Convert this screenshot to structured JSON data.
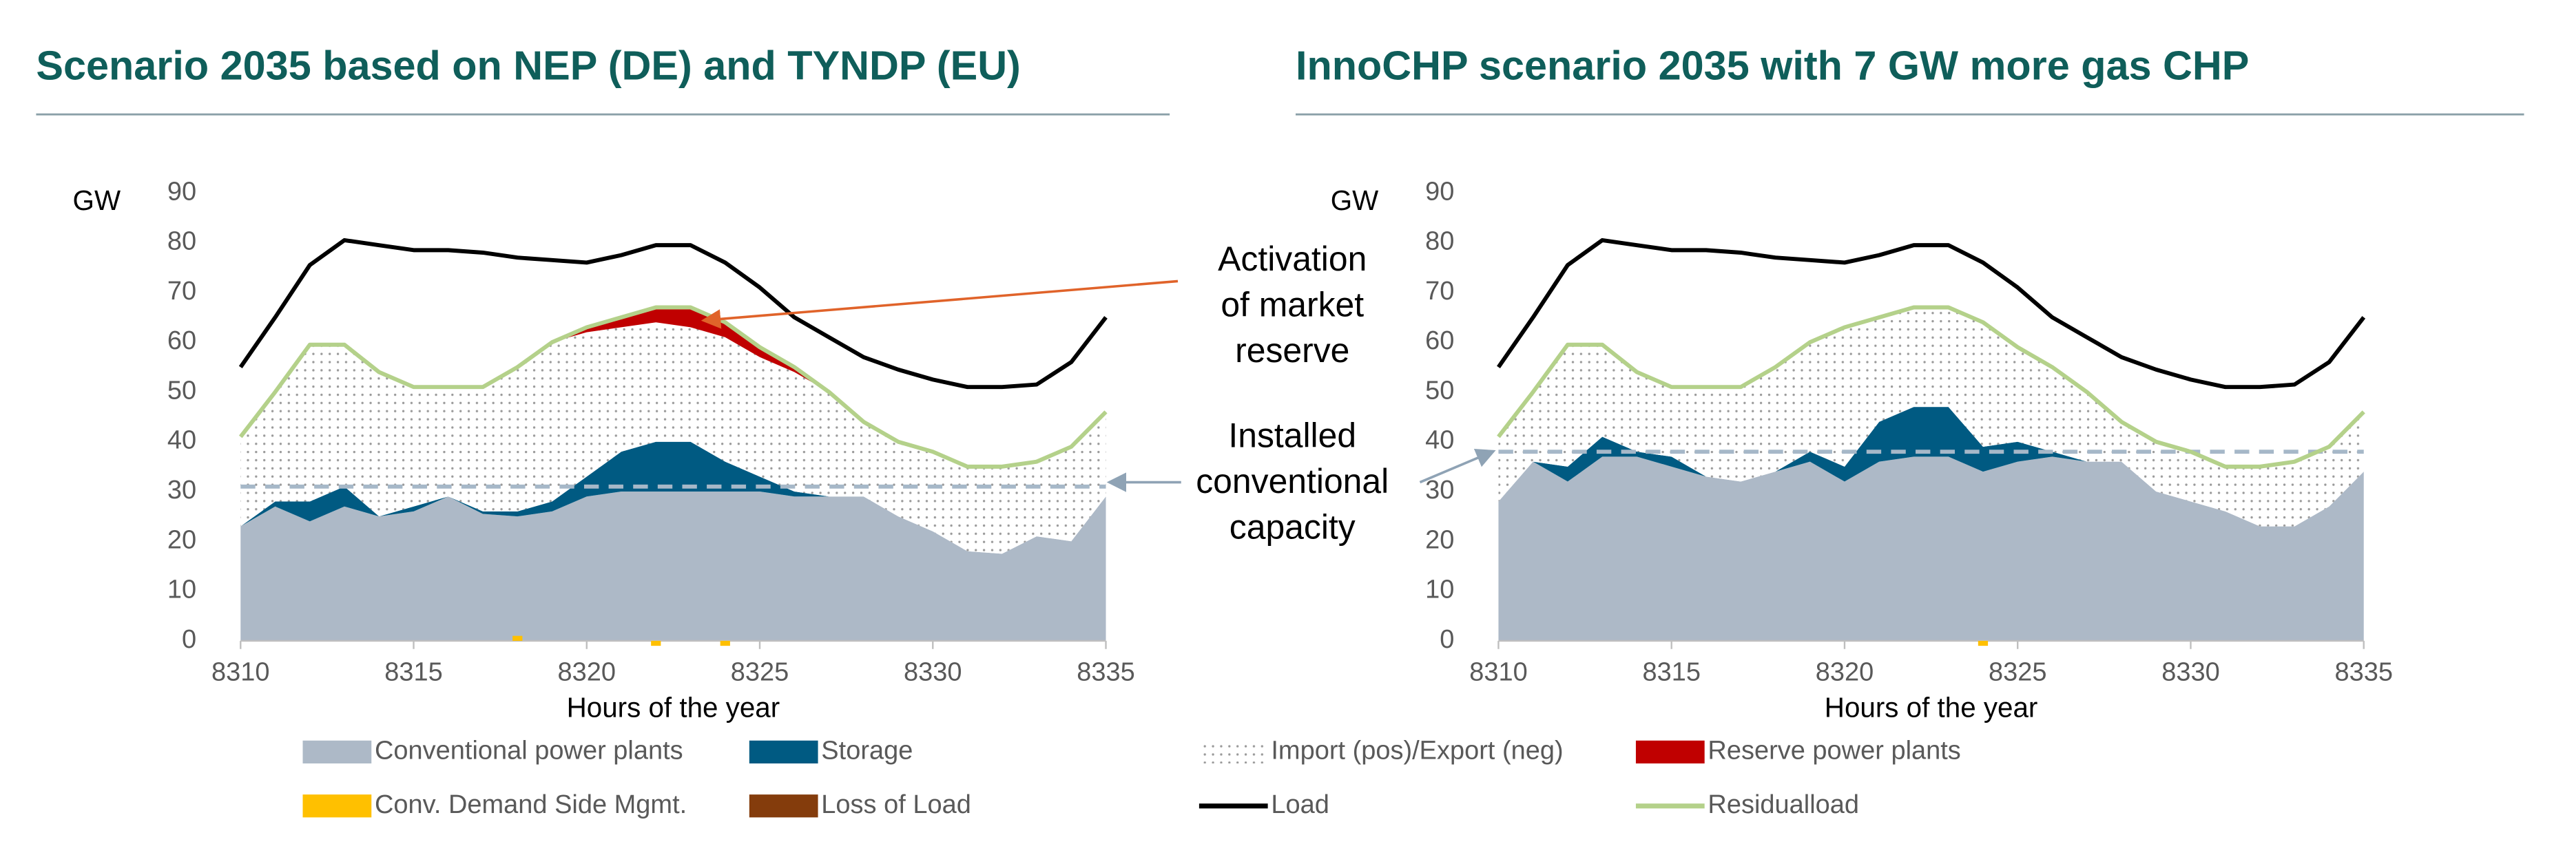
{
  "chart_data": [
    {
      "type": "area",
      "title": "Scenario 2035 based on NEP (DE) and TYNDP (EU)",
      "ylabel": "GW",
      "xlabel": "Hours of the year",
      "x": [
        8310,
        8311,
        8312,
        8313,
        8314,
        8315,
        8316,
        8317,
        8318,
        8319,
        8320,
        8321,
        8322,
        8323,
        8324,
        8325,
        8326,
        8327,
        8328,
        8329,
        8330,
        8331,
        8332,
        8333,
        8334,
        8335
      ],
      "xlim": [
        8310,
        8335
      ],
      "xticks": [
        8310,
        8315,
        8320,
        8325,
        8330,
        8335
      ],
      "ylim": [
        0,
        90
      ],
      "yticks": [
        0,
        10,
        20,
        30,
        40,
        50,
        60,
        70,
        80,
        90
      ],
      "capacity": 31,
      "capacity_color": "#a6b8c8",
      "series": [
        {
          "name": "Conventional power plants",
          "kind": "area",
          "color": "#adb9c7",
          "values": [
            23,
            27,
            24,
            27,
            25,
            26,
            29,
            25.5,
            25,
            26,
            29,
            30,
            30,
            30,
            30,
            30,
            29,
            29,
            29,
            25,
            22,
            18,
            17.5,
            21,
            20,
            29
          ]
        },
        {
          "name": "Storage",
          "kind": "area",
          "color": "#005a82",
          "values": [
            0,
            1,
            4,
            4,
            0,
            1,
            0,
            0.5,
            1,
            2,
            4,
            8,
            10,
            10,
            6,
            3,
            1,
            0,
            0,
            0,
            0,
            0,
            0,
            0,
            0,
            0
          ]
        },
        {
          "name": "Import (pos)/Export (neg)",
          "kind": "area",
          "color": "#d0d0d0",
          "pattern": "dots",
          "values": [
            18,
            22,
            31.5,
            28.5,
            29,
            24,
            22,
            25,
            29,
            32,
            29,
            25,
            24,
            23,
            25,
            24,
            24,
            21,
            15,
            15,
            16,
            17,
            17.5,
            15,
            19,
            17
          ]
        },
        {
          "name": "Reserve power plants",
          "kind": "area",
          "color": "#c00000",
          "values": [
            0,
            0,
            0,
            0,
            0,
            0,
            0,
            0,
            0,
            0,
            1,
            2,
            3,
            4,
            3,
            2,
            1,
            0,
            0,
            0,
            0,
            0,
            0,
            0,
            0,
            0
          ]
        },
        {
          "name": "Conv. Demand Side Mgmt.",
          "kind": "bar",
          "color": "#ffc000",
          "values": [
            0,
            0,
            0,
            0,
            0,
            0,
            0,
            0,
            1,
            0,
            0,
            0,
            -1,
            0,
            -1,
            0,
            0,
            0,
            0,
            0,
            0,
            0,
            0,
            0,
            0,
            0
          ]
        },
        {
          "name": "Loss of Load",
          "kind": "area",
          "color": "#843c0c",
          "values": [
            0,
            0,
            0,
            0,
            0,
            0,
            0,
            0,
            0,
            0,
            0,
            0,
            0,
            0,
            0,
            0,
            0,
            0,
            0,
            0,
            0,
            0,
            0,
            0,
            0,
            0
          ]
        },
        {
          "name": "Load",
          "kind": "line",
          "color": "#000000",
          "values": [
            55,
            65,
            75.5,
            80.5,
            79.5,
            78.5,
            78.5,
            78,
            77,
            76.5,
            76,
            77.5,
            79.5,
            79.5,
            76,
            71,
            65,
            61,
            57,
            54.5,
            52.5,
            51,
            51,
            51.5,
            56,
            65
          ]
        },
        {
          "name": "Residualload",
          "kind": "line",
          "color": "#b4d18a",
          "values": [
            41,
            50,
            59.5,
            59.5,
            54,
            51,
            51,
            51,
            55,
            60,
            63,
            65,
            67,
            67,
            64,
            59,
            55,
            50,
            44,
            40,
            38,
            35,
            35,
            36,
            39,
            46
          ]
        }
      ]
    },
    {
      "type": "area",
      "title": "InnoCHP scenario 2035 with 7 GW more gas CHP",
      "ylabel": "GW",
      "xlabel": "Hours of the year",
      "x": [
        8310,
        8311,
        8312,
        8313,
        8314,
        8315,
        8316,
        8317,
        8318,
        8319,
        8320,
        8321,
        8322,
        8323,
        8324,
        8325,
        8326,
        8327,
        8328,
        8329,
        8330,
        8331,
        8332,
        8333,
        8334,
        8335
      ],
      "xlim": [
        8310,
        8335
      ],
      "xticks": [
        8310,
        8315,
        8320,
        8325,
        8330,
        8335
      ],
      "ylim": [
        0,
        90
      ],
      "yticks": [
        0,
        10,
        20,
        30,
        40,
        50,
        60,
        70,
        80,
        90
      ],
      "capacity": 38,
      "capacity_color": "#a6b8c8",
      "series": [
        {
          "name": "Conventional power plants",
          "kind": "area",
          "color": "#adb9c7",
          "values": [
            28,
            36,
            32,
            37,
            37,
            35,
            33,
            32,
            34,
            36,
            32,
            36,
            37,
            37,
            34,
            36,
            37,
            36,
            36,
            30,
            28,
            26,
            23,
            23,
            27,
            34
          ]
        },
        {
          "name": "Storage",
          "kind": "area",
          "color": "#005a82",
          "values": [
            0,
            0,
            3,
            4,
            1,
            2,
            0,
            0,
            0,
            2,
            3,
            8,
            10,
            10,
            5,
            4,
            1,
            0,
            0,
            0,
            0,
            0,
            0,
            0,
            0,
            0
          ]
        },
        {
          "name": "Import (pos)/Export (neg)",
          "kind": "area",
          "color": "#d0d0d0",
          "pattern": "dots",
          "values": [
            13,
            14,
            24.5,
            18.5,
            16,
            14,
            18,
            19,
            21,
            22,
            28,
            21,
            20,
            20,
            25,
            19,
            17,
            14,
            8,
            10,
            10,
            9,
            12,
            13,
            12,
            12
          ]
        },
        {
          "name": "Reserve power plants",
          "kind": "area",
          "color": "#c00000",
          "values": [
            0,
            0,
            0,
            0,
            0,
            0,
            0,
            0,
            0,
            0,
            0,
            0,
            0,
            0,
            0,
            0,
            0,
            0,
            0,
            0,
            0,
            0,
            0,
            0,
            0,
            0
          ]
        },
        {
          "name": "Conv. Demand Side Mgmt.",
          "kind": "bar",
          "color": "#ffc000",
          "values": [
            0,
            0,
            0,
            0,
            0,
            0,
            0,
            0,
            0,
            0,
            0,
            0,
            0,
            0,
            -1,
            0,
            0,
            0,
            0,
            0,
            0,
            0,
            0,
            0,
            0,
            0
          ]
        },
        {
          "name": "Loss of Load",
          "kind": "area",
          "color": "#843c0c",
          "values": [
            0,
            0,
            0,
            0,
            0,
            0,
            0,
            0,
            0,
            0,
            0,
            0,
            0,
            0,
            0,
            0,
            0,
            0,
            0,
            0,
            0,
            0,
            0,
            0,
            0,
            0
          ]
        },
        {
          "name": "Load",
          "kind": "line",
          "color": "#000000",
          "values": [
            55,
            65,
            75.5,
            80.5,
            79.5,
            78.5,
            78.5,
            78,
            77,
            76.5,
            76,
            77.5,
            79.5,
            79.5,
            76,
            71,
            65,
            61,
            57,
            54.5,
            52.5,
            51,
            51,
            51.5,
            56,
            65
          ]
        },
        {
          "name": "Residualload",
          "kind": "line",
          "color": "#b4d18a",
          "values": [
            41,
            50,
            59.5,
            59.5,
            54,
            51,
            51,
            51,
            55,
            60,
            63,
            65,
            67,
            67,
            64,
            59,
            55,
            50,
            44,
            40,
            38,
            35,
            35,
            36,
            39,
            46
          ]
        }
      ]
    }
  ],
  "annotations": [
    [
      "Activation",
      "of market",
      "reserve"
    ],
    [
      "Installed",
      "conventional",
      "capacity"
    ]
  ]
}
